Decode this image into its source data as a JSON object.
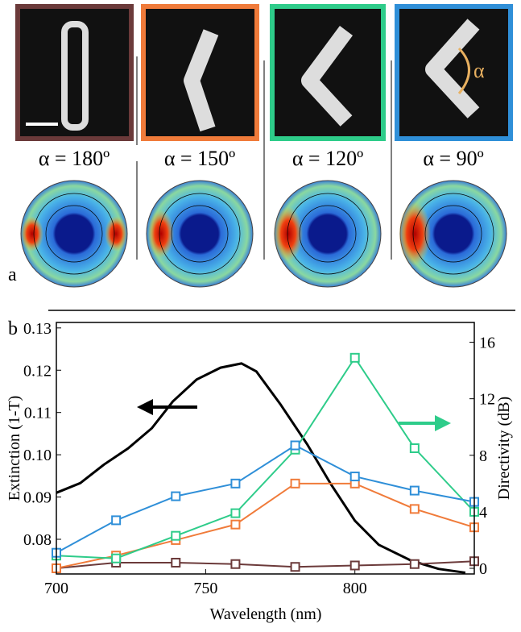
{
  "figure": {
    "panel_a_label": "a",
    "panel_b_label": "b",
    "alpha_symbol": "α",
    "angles": [
      "α = 180º",
      "α = 150º",
      "α = 120º",
      "α = 90º"
    ]
  },
  "chart_data": {
    "type": "line",
    "x_label": "Wavelength (nm)",
    "y_label": "Extinction (1-T)",
    "y2_label": "Directivity (dB)",
    "xlim": [
      700,
      840
    ],
    "xticks": [
      700,
      750,
      800
    ],
    "ylim": [
      0.0718,
      0.1313
    ],
    "yticks": [
      0.08,
      0.09,
      {
        "value": 0.1,
        "label": "0.10"
      },
      0.11,
      0.12,
      0.13
    ],
    "y2lim": [
      -0.4,
      17.4
    ],
    "y2ticks": [
      0,
      4,
      8,
      12,
      16
    ],
    "x": [
      700,
      720,
      740,
      760,
      780,
      800,
      820,
      840
    ],
    "series": [
      {
        "color": "#000000",
        "x": [
          700,
          708,
          716,
          724,
          732,
          739,
          747,
          755,
          762,
          767,
          775,
          784,
          792,
          800,
          808,
          819,
          828,
          837
        ],
        "values": [
          0.091,
          0.0933,
          0.0977,
          0.1015,
          0.1063,
          0.1126,
          0.1178,
          0.1206,
          0.1216,
          0.1197,
          0.112,
          0.1025,
          0.093,
          0.0844,
          0.0787,
          0.0749,
          0.073,
          0.0721
        ]
      },
      {
        "color": "#6b3a3a",
        "axis": "y2",
        "values": [
          0,
          0.4,
          0.4,
          0.3,
          0.1,
          0.2,
          0.3,
          0.5
        ]
      },
      {
        "color": "#f07b3a",
        "axis": "y2",
        "values": [
          0,
          0.9,
          2.0,
          3.1,
          6.0,
          6.0,
          4.2,
          2.9
        ]
      },
      {
        "color": "#2ecc8a",
        "axis": "y2",
        "values": [
          0.9,
          0.7,
          2.3,
          3.9,
          8.4,
          14.9,
          8.5,
          4.0
        ]
      },
      {
        "color": "#2f8fd8",
        "axis": "y2",
        "values": [
          1.1,
          3.4,
          5.1,
          6.0,
          8.7,
          6.5,
          5.5,
          4.7
        ]
      }
    ]
  }
}
